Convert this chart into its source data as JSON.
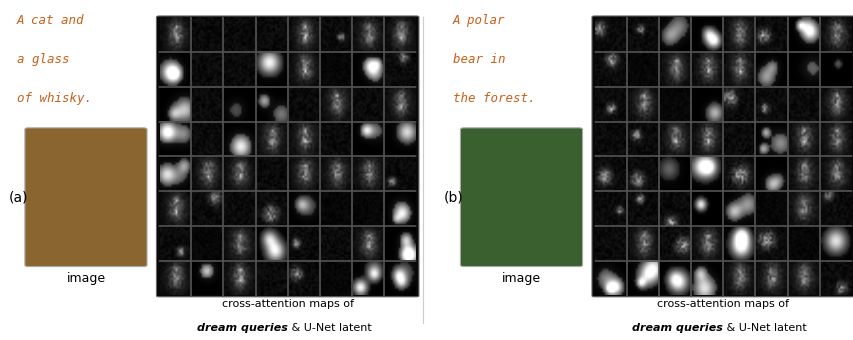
{
  "fig_width": 8.54,
  "fig_height": 3.4,
  "dpi": 100,
  "background_color": "#ffffff",
  "panel_a": {
    "label": "(a)",
    "text_lines": [
      "A cat and",
      "a glass",
      "of whisky."
    ],
    "text_color": "#c8601a",
    "image_label": "image",
    "image_label_color": "#000000",
    "grid_rows": 8,
    "grid_cols": 8,
    "photo_color": "#8B6530",
    "caption_line1": "cross-attention maps of",
    "caption_line2_italic": "dream queries",
    "caption_line2_normal": " & U-Net latent",
    "caption_color": "#000000"
  },
  "panel_b": {
    "label": "(b)",
    "text_lines": [
      "A polar",
      "bear in",
      "the forest."
    ],
    "text_color": "#c8601a",
    "image_label": "image",
    "image_label_color": "#000000",
    "grid_rows": 8,
    "grid_cols": 8,
    "photo_color": "#3a6030",
    "caption_line1": "cross-attention maps of",
    "caption_line2_italic": "dream queries",
    "caption_line2_normal": " & U-Net latent",
    "caption_color": "#000000"
  },
  "caption_fontsize": 8.0,
  "text_fontsize": 9.0,
  "label_fontsize": 10,
  "image_label_fontsize": 9
}
